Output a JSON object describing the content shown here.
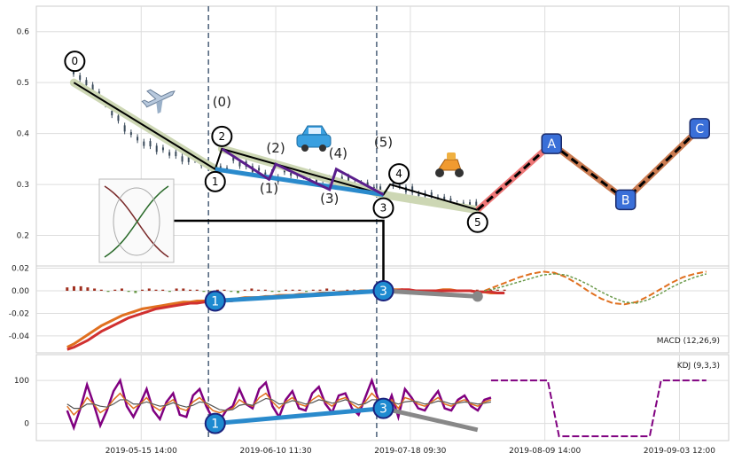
{
  "chart_data": [
    {
      "type": "line",
      "panel": "price",
      "ylim": [
        0.14,
        0.65
      ],
      "yticks": [
        0.2,
        0.3,
        0.4,
        0.5,
        0.6
      ],
      "grid": true,
      "main_wave": [
        {
          "label": "0",
          "x": 4,
          "y": 0.5
        },
        {
          "label": "1",
          "x": 25,
          "y": 0.33
        },
        {
          "label": "2",
          "x": 26,
          "y": 0.37
        },
        {
          "label": "3",
          "x": 50,
          "y": 0.28
        },
        {
          "label": "4",
          "x": 51,
          "y": 0.3
        },
        {
          "label": "5",
          "x": 64,
          "y": 0.25
        }
      ],
      "projection_abc": [
        {
          "label": "A",
          "x": 75,
          "y": 0.38
        },
        {
          "label": "B",
          "x": 86,
          "y": 0.27
        },
        {
          "label": "C",
          "x": 97,
          "y": 0.41
        }
      ],
      "sub_wave": [
        {
          "label": "(0)",
          "x": 26,
          "y": 0.37
        },
        {
          "label": "(1)",
          "x": 33,
          "y": 0.31
        },
        {
          "label": "(2)",
          "x": 34,
          "y": 0.34
        },
        {
          "label": "(3)",
          "x": 42,
          "y": 0.29
        },
        {
          "label": "(4)",
          "x": 43,
          "y": 0.33
        },
        {
          "label": "(5)",
          "x": 50,
          "y": 0.28
        }
      ],
      "price_hint": [
        0.54,
        0.52,
        0.51,
        0.5,
        0.49,
        0.48,
        0.46,
        0.44,
        0.43,
        0.41,
        0.4,
        0.39,
        0.38,
        0.38,
        0.37,
        0.37,
        0.36,
        0.36,
        0.35,
        0.35,
        0.35,
        0.34,
        0.34,
        0.33,
        0.33,
        0.33,
        0.35,
        0.34,
        0.34,
        0.33,
        0.33,
        0.32,
        0.32,
        0.31,
        0.33,
        0.32,
        0.32,
        0.32,
        0.32,
        0.31,
        0.31,
        0.31,
        0.3,
        0.31,
        0.31,
        0.3,
        0.3,
        0.3,
        0.29,
        0.29,
        0.28,
        0.3,
        0.3,
        0.29,
        0.29,
        0.28,
        0.28,
        0.28,
        0.27,
        0.27,
        0.27,
        0.26,
        0.26,
        0.26,
        0.26
      ]
    },
    {
      "type": "line",
      "panel": "macd",
      "label": "MACD (12,26,9)",
      "ylim": [
        -0.055,
        0.022
      ],
      "yticks": [
        0.02,
        0.0,
        -0.02,
        -0.04
      ],
      "macd": [
        -0.05,
        -0.047,
        -0.043,
        -0.039,
        -0.035,
        -0.031,
        -0.028,
        -0.025,
        -0.022,
        -0.02,
        -0.018,
        -0.016,
        -0.015,
        -0.014,
        -0.013,
        -0.012,
        -0.011,
        -0.01,
        -0.01,
        -0.009,
        -0.009,
        -0.008,
        -0.008,
        -0.008,
        -0.008,
        -0.007,
        -0.006,
        -0.006,
        -0.006,
        -0.005,
        -0.005,
        -0.004,
        -0.004,
        -0.004,
        -0.003,
        -0.003,
        -0.003,
        -0.002,
        -0.002,
        -0.002,
        -0.001,
        -0.001,
        -0.001,
        0.0,
        0.0,
        0.0,
        0.0,
        0.001,
        0.001,
        0.001,
        0.0,
        0.0,
        0.0,
        0.0,
        0.0,
        0.001,
        0.001,
        0.0,
        0.0,
        0.0,
        -0.001,
        -0.001,
        -0.002,
        -0.002,
        -0.002
      ],
      "signal": [
        -0.052,
        -0.05,
        -0.047,
        -0.044,
        -0.04,
        -0.036,
        -0.033,
        -0.03,
        -0.027,
        -0.024,
        -0.022,
        -0.02,
        -0.018,
        -0.016,
        -0.015,
        -0.014,
        -0.013,
        -0.012,
        -0.011,
        -0.011,
        -0.01,
        -0.01,
        -0.009,
        -0.009,
        -0.009,
        -0.008,
        -0.008,
        -0.007,
        -0.007,
        -0.006,
        -0.006,
        -0.005,
        -0.005,
        -0.005,
        -0.004,
        -0.004,
        -0.004,
        -0.003,
        -0.003,
        -0.003,
        -0.002,
        -0.002,
        -0.002,
        -0.001,
        -0.001,
        -0.001,
        0.0,
        0.0,
        0.0,
        0.001,
        0.001,
        0.0,
        0.0,
        0.0,
        0.0,
        0.0,
        0.0,
        0.0,
        0.0,
        0.0,
        -0.001,
        -0.001,
        -0.001,
        -0.002,
        -0.002
      ],
      "hist": [
        0.003,
        0.004,
        0.004,
        0.003,
        0.002,
        0.001,
        -0.001,
        0.001,
        0.002,
        -0.001,
        -0.002,
        0.001,
        0.002,
        0.001,
        0.001,
        -0.001,
        0.002,
        0.002,
        0.001,
        0.001,
        -0.001,
        -0.001,
        0.001,
        0.001,
        -0.001,
        -0.002,
        0.001,
        0.002,
        0.001,
        0.001,
        -0.001,
        -0.001,
        0.001,
        0.001,
        0.001,
        -0.001,
        0.001,
        0.001,
        0.002,
        0.001,
        -0.001,
        0.001,
        0.001,
        0.001,
        0.001,
        -0.001,
        -0.001,
        0.001,
        0.001,
        0.002,
        0.001,
        -0.001,
        -0.001,
        0.001,
        0.001,
        0.001,
        0.001,
        -0.001,
        -0.001,
        0.001,
        0.001,
        -0.001,
        0.001,
        0.001,
        0.001
      ],
      "proj_macd": [
        0.0,
        0.004,
        0.008,
        0.012,
        0.015,
        0.017,
        0.016,
        0.012,
        0.006,
        -0.001,
        -0.007,
        -0.011,
        -0.012,
        -0.01,
        -0.005,
        0.001,
        0.007,
        0.012,
        0.015,
        0.017
      ],
      "proj_signal": [
        0.0,
        0.002,
        0.005,
        0.008,
        0.011,
        0.014,
        0.015,
        0.014,
        0.01,
        0.005,
        -0.001,
        -0.006,
        -0.01,
        -0.011,
        -0.008,
        -0.003,
        0.003,
        0.008,
        0.012,
        0.015
      ],
      "divergence": [
        {
          "label": "1",
          "x": 25,
          "y": -0.009
        },
        {
          "label": "3",
          "x": 50,
          "y": 0.0
        },
        {
          "label": "",
          "x": 64,
          "y": -0.005
        }
      ]
    },
    {
      "type": "line",
      "panel": "kdj",
      "label": "KDJ (9,3,3)",
      "ylim": [
        -40,
        160
      ],
      "yticks": [
        100,
        0
      ],
      "k": [
        40,
        20,
        35,
        60,
        45,
        25,
        35,
        55,
        70,
        50,
        35,
        45,
        60,
        40,
        30,
        45,
        55,
        35,
        30,
        50,
        60,
        45,
        30,
        25,
        30,
        35,
        55,
        45,
        40,
        60,
        70,
        50,
        35,
        50,
        60,
        45,
        40,
        55,
        65,
        50,
        40,
        55,
        60,
        45,
        35,
        50,
        70,
        55,
        40,
        55,
        35,
        60,
        55,
        45,
        40,
        50,
        60,
        45,
        40,
        50,
        55,
        45,
        40,
        50,
        55
      ],
      "d": [
        45,
        35,
        35,
        45,
        45,
        40,
        38,
        45,
        55,
        55,
        45,
        45,
        50,
        45,
        40,
        42,
        48,
        42,
        38,
        42,
        50,
        48,
        40,
        32,
        30,
        32,
        42,
        45,
        42,
        50,
        58,
        55,
        45,
        47,
        53,
        50,
        45,
        48,
        55,
        52,
        47,
        50,
        55,
        50,
        43,
        46,
        55,
        55,
        48,
        50,
        45,
        50,
        52,
        50,
        45,
        47,
        52,
        50,
        45,
        47,
        50,
        48,
        45,
        47,
        50
      ],
      "j": [
        30,
        -10,
        35,
        90,
        45,
        -5,
        30,
        75,
        100,
        40,
        15,
        45,
        80,
        30,
        10,
        50,
        70,
        20,
        15,
        65,
        80,
        40,
        10,
        5,
        30,
        40,
        80,
        45,
        35,
        80,
        95,
        40,
        15,
        55,
        75,
        35,
        30,
        70,
        85,
        45,
        25,
        65,
        70,
        35,
        20,
        60,
        100,
        55,
        25,
        65,
        15,
        80,
        60,
        35,
        30,
        55,
        75,
        35,
        30,
        55,
        65,
        40,
        30,
        55,
        60
      ],
      "proj_k": [
        100,
        100,
        100,
        100,
        100,
        100,
        -30,
        -30,
        -30,
        -30,
        -30,
        -30,
        -30,
        -30,
        -30,
        100,
        100,
        100,
        100,
        100
      ],
      "divergence": [
        {
          "label": "1",
          "x": 25,
          "y": 0
        },
        {
          "label": "3",
          "x": 50,
          "y": 35
        },
        {
          "label": "",
          "x": 64,
          "y": -15
        }
      ]
    }
  ],
  "axis": {
    "xticks": [
      {
        "pos": 14,
        "label": "2019-05-15 14:00"
      },
      {
        "pos": 34,
        "label": "2019-06-10 11:30"
      },
      {
        "pos": 54,
        "label": "2019-07-18 09:30"
      },
      {
        "pos": 74,
        "label": "2019-08-09 14:00"
      },
      {
        "pos": 94,
        "label": "2019-09-03 12:00"
      }
    ],
    "vlines": [
      24,
      49
    ]
  },
  "colors": {
    "grid": "#dddddd",
    "candle": "#3a4a5a",
    "wave_main": "#000000",
    "wave_halo": "#cdd7b4",
    "sub_wave": "#5a1e8c",
    "divergence": "#2a8acc",
    "tail": "#888888",
    "abc_line1": "#ee7777",
    "abc_line2": "#c97a50",
    "abc_box": "#3a6fd8",
    "macd": "#e07020",
    "signal": "#d03030",
    "kdj_k": "#800080",
    "kdj_d": "#e07020"
  },
  "icons": [
    "airplane-icon",
    "car-icon",
    "scooter-icon",
    "inset-thumbnail"
  ]
}
